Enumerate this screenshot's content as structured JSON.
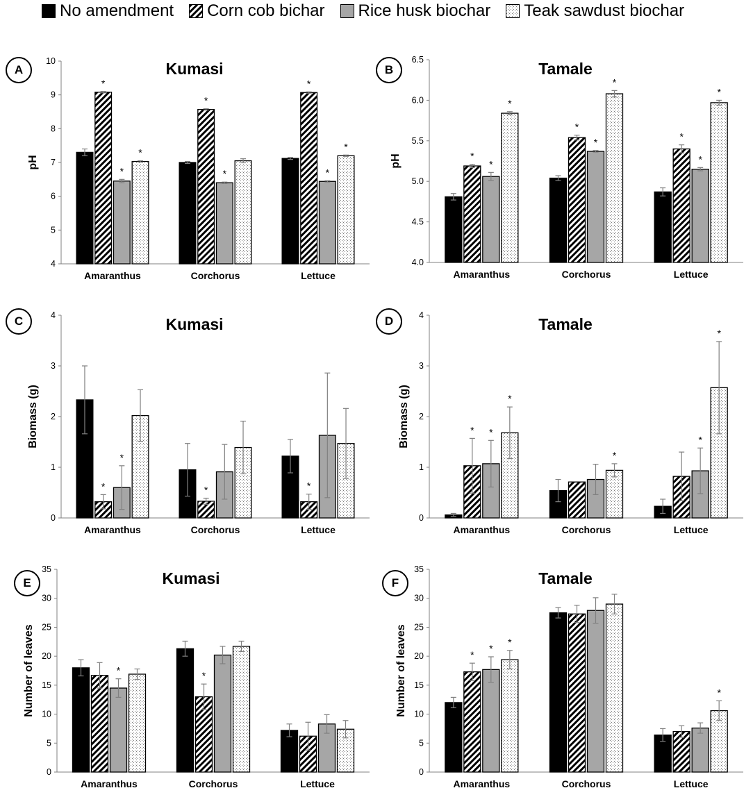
{
  "legend": {
    "items": [
      {
        "label": "No amendment",
        "pattern": "solid"
      },
      {
        "label": "Corn cob bichar",
        "pattern": "diagonal"
      },
      {
        "label": "Rice husk biochar",
        "pattern": "gray"
      },
      {
        "label": "Teak sawdust biochar",
        "pattern": "dots"
      }
    ]
  },
  "colors": {
    "no_amendment": "#000000",
    "rice_husk": "#a6a6a6",
    "border": "#000000",
    "axis": "#808080",
    "error_bar": "#808080"
  },
  "chart_data": [
    {
      "type": "bar",
      "letter": "A",
      "title": "Kumasi",
      "ylabel": "pH",
      "xlabel": "",
      "ylim": [
        4,
        10
      ],
      "yticks": [
        4,
        5,
        6,
        7,
        8,
        9,
        10
      ],
      "yticklabels": [
        "4",
        "5",
        "6",
        "7",
        "8",
        "9",
        "10"
      ],
      "categories": [
        "Amaranthus",
        "Corchorus",
        "Lettuce"
      ],
      "series": [
        {
          "name": "No amendment",
          "values": [
            7.3,
            7.0,
            7.12
          ],
          "errors": [
            0.1,
            0.03,
            0.03
          ],
          "sig": [
            false,
            false,
            false
          ]
        },
        {
          "name": "Corn cob bichar",
          "values": [
            9.08,
            8.57,
            9.07
          ],
          "errors": [
            0.02,
            0.02,
            0.02
          ],
          "sig": [
            true,
            true,
            true
          ]
        },
        {
          "name": "Rice husk biochar",
          "values": [
            6.45,
            6.4,
            6.44
          ],
          "errors": [
            0.05,
            0.02,
            0.02
          ],
          "sig": [
            true,
            true,
            true
          ]
        },
        {
          "name": "Teak sawdust biochar",
          "values": [
            7.03,
            7.05,
            7.2
          ],
          "errors": [
            0.02,
            0.06,
            0.02
          ],
          "sig": [
            true,
            false,
            true
          ]
        }
      ]
    },
    {
      "type": "bar",
      "letter": "B",
      "title": "Tamale",
      "ylabel": "pH",
      "xlabel": "",
      "ylim": [
        4,
        6.5
      ],
      "yticks": [
        4,
        4.5,
        5,
        5.5,
        6,
        6.5
      ],
      "yticklabels": [
        "4.0",
        "4.5",
        "5.0",
        "5.5",
        "6.0",
        "6.5"
      ],
      "categories": [
        "Amaranthus",
        "Corchorus",
        "Lettuce"
      ],
      "series": [
        {
          "name": "No amendment",
          "values": [
            4.81,
            5.04,
            4.87
          ],
          "errors": [
            0.04,
            0.03,
            0.05
          ],
          "sig": [
            false,
            false,
            false
          ]
        },
        {
          "name": "Corn cob bichar",
          "values": [
            5.19,
            5.54,
            5.4
          ],
          "errors": [
            0.02,
            0.03,
            0.05
          ],
          "sig": [
            true,
            true,
            true
          ]
        },
        {
          "name": "Rice husk biochar",
          "values": [
            5.06,
            5.37,
            5.15
          ],
          "errors": [
            0.05,
            0.01,
            0.02
          ],
          "sig": [
            true,
            true,
            true
          ]
        },
        {
          "name": "Teak sawdust biochar",
          "values": [
            5.84,
            6.08,
            5.97
          ],
          "errors": [
            0.02,
            0.04,
            0.03
          ],
          "sig": [
            true,
            true,
            true
          ]
        }
      ]
    },
    {
      "type": "bar",
      "letter": "C",
      "title": "Kumasi",
      "ylabel": "Biomass  (g)",
      "xlabel": "",
      "ylim": [
        0,
        4
      ],
      "yticks": [
        0,
        1,
        2,
        3,
        4
      ],
      "yticklabels": [
        "0",
        "1",
        "2",
        "3",
        "4"
      ],
      "categories": [
        "Amaranthus",
        "Corchorus",
        "Lettuce"
      ],
      "series": [
        {
          "name": "No amendment",
          "values": [
            2.33,
            0.95,
            1.22
          ],
          "errors": [
            0.67,
            0.52,
            0.33
          ],
          "sig": [
            false,
            false,
            false
          ]
        },
        {
          "name": "Corn cob bichar",
          "values": [
            0.32,
            0.33,
            0.32
          ],
          "errors": [
            0.14,
            0.06,
            0.15
          ],
          "sig": [
            true,
            true,
            true
          ]
        },
        {
          "name": "Rice husk biochar",
          "values": [
            0.6,
            0.91,
            1.63
          ],
          "errors": [
            0.43,
            0.54,
            1.23
          ],
          "sig": [
            true,
            false,
            false
          ]
        },
        {
          "name": "Teak sawdust biochar",
          "values": [
            2.02,
            1.39,
            1.47
          ],
          "errors": [
            0.51,
            0.52,
            0.69
          ],
          "sig": [
            false,
            false,
            false
          ]
        }
      ]
    },
    {
      "type": "bar",
      "letter": "D",
      "title": "Tamale",
      "ylabel": "Biomass  (g)",
      "xlabel": "",
      "ylim": [
        0,
        4
      ],
      "yticks": [
        0,
        1,
        2,
        3,
        4
      ],
      "yticklabels": [
        "0",
        "1",
        "2",
        "3",
        "4"
      ],
      "categories": [
        "Amaranthus",
        "Corchorus",
        "Lettuce"
      ],
      "series": [
        {
          "name": "No amendment",
          "values": [
            0.06,
            0.54,
            0.23
          ],
          "errors": [
            0.03,
            0.22,
            0.14
          ],
          "sig": [
            false,
            false,
            false
          ]
        },
        {
          "name": "Corn cob bichar",
          "values": [
            1.03,
            0.71,
            0.82
          ],
          "errors": [
            0.54,
            0.0,
            0.48
          ],
          "sig": [
            true,
            false,
            false
          ]
        },
        {
          "name": "Rice husk biochar",
          "values": [
            1.07,
            0.76,
            0.93
          ],
          "errors": [
            0.46,
            0.3,
            0.45
          ],
          "sig": [
            true,
            false,
            true
          ]
        },
        {
          "name": "Teak sawdust biochar",
          "values": [
            1.68,
            0.94,
            2.57
          ],
          "errors": [
            0.51,
            0.13,
            0.91
          ],
          "sig": [
            true,
            true,
            true
          ]
        }
      ]
    },
    {
      "type": "bar",
      "letter": "E",
      "title": "Kumasi",
      "ylabel": "Number of leaves",
      "xlabel": "",
      "ylim": [
        0,
        35
      ],
      "yticks": [
        0,
        5,
        10,
        15,
        20,
        25,
        30,
        35
      ],
      "yticklabels": [
        "0",
        "5",
        "10",
        "15",
        "20",
        "25",
        "30",
        "35"
      ],
      "categories": [
        "Amaranthus",
        "Corchorus",
        "Lettuce"
      ],
      "series": [
        {
          "name": "No amendment",
          "values": [
            18.0,
            21.3,
            7.2
          ],
          "errors": [
            1.4,
            1.3,
            1.1
          ],
          "sig": [
            false,
            false,
            false
          ]
        },
        {
          "name": "Corn cob bichar",
          "values": [
            16.7,
            13.0,
            6.2
          ],
          "errors": [
            2.2,
            2.2,
            2.4
          ],
          "sig": [
            false,
            true,
            false
          ]
        },
        {
          "name": "Rice husk biochar",
          "values": [
            14.5,
            20.2,
            8.3
          ],
          "errors": [
            1.6,
            1.5,
            1.6
          ],
          "sig": [
            true,
            false,
            false
          ]
        },
        {
          "name": "Teak sawdust biochar",
          "values": [
            16.9,
            21.7,
            7.4
          ],
          "errors": [
            0.9,
            0.9,
            1.5
          ],
          "sig": [
            false,
            false,
            false
          ]
        }
      ]
    },
    {
      "type": "bar",
      "letter": "F",
      "title": "Tamale",
      "ylabel": "Number of leaves",
      "xlabel": "",
      "ylim": [
        0,
        35
      ],
      "yticks": [
        0,
        5,
        10,
        15,
        20,
        25,
        30,
        35
      ],
      "yticklabels": [
        "0",
        "5",
        "10",
        "15",
        "20",
        "25",
        "30",
        "35"
      ],
      "categories": [
        "Amaranthus",
        "Corchorus",
        "Lettuce"
      ],
      "series": [
        {
          "name": "No amendment",
          "values": [
            12.0,
            27.5,
            6.4
          ],
          "errors": [
            0.9,
            0.9,
            1.1
          ],
          "sig": [
            false,
            false,
            false
          ]
        },
        {
          "name": "Corn cob bichar",
          "values": [
            17.3,
            27.3,
            7.0
          ],
          "errors": [
            1.5,
            1.5,
            1.0
          ],
          "sig": [
            true,
            false,
            false
          ]
        },
        {
          "name": "Rice husk biochar",
          "values": [
            17.7,
            27.9,
            7.6
          ],
          "errors": [
            2.2,
            2.2,
            0.9
          ],
          "sig": [
            true,
            false,
            false
          ]
        },
        {
          "name": "Teak sawdust biochar",
          "values": [
            19.4,
            29.0,
            10.6
          ],
          "errors": [
            1.6,
            1.7,
            1.7
          ],
          "sig": [
            true,
            false,
            true
          ]
        }
      ]
    }
  ]
}
